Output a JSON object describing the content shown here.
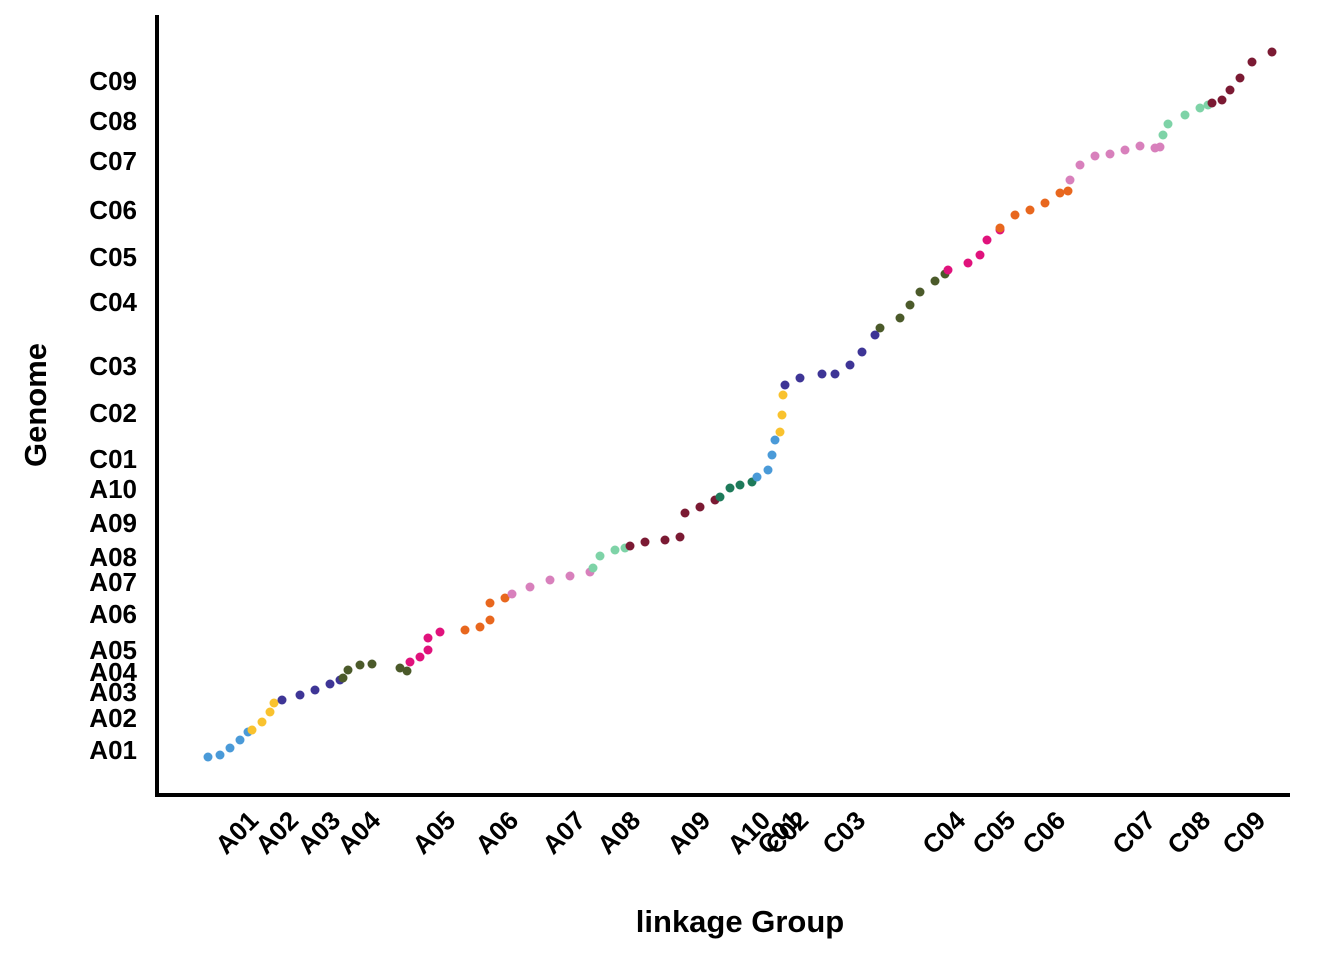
{
  "chart_data": {
    "type": "scatter",
    "x_label": "linkage Group",
    "y_label": "Genome",
    "xlim": [
      0,
      1133
    ],
    "ylim": [
      0,
      780
    ],
    "xticks": [
      {
        "value": 71,
        "label": "A01"
      },
      {
        "value": 111,
        "label": "A02"
      },
      {
        "value": 153,
        "label": "A03"
      },
      {
        "value": 193,
        "label": "A04"
      },
      {
        "value": 268,
        "label": "A05"
      },
      {
        "value": 331,
        "label": "A06"
      },
      {
        "value": 398,
        "label": "A07"
      },
      {
        "value": 453,
        "label": "A08"
      },
      {
        "value": 523,
        "label": "A09"
      },
      {
        "value": 583,
        "label": "A10"
      },
      {
        "value": 613,
        "label": "C01"
      },
      {
        "value": 621,
        "label": "C02"
      },
      {
        "value": 678,
        "label": "C03"
      },
      {
        "value": 778,
        "label": "C04"
      },
      {
        "value": 828,
        "label": "C05"
      },
      {
        "value": 878,
        "label": "C06"
      },
      {
        "value": 968,
        "label": "C07"
      },
      {
        "value": 1023,
        "label": "C08"
      },
      {
        "value": 1078,
        "label": "C09"
      }
    ],
    "yticks": [
      {
        "value": 45,
        "label": "A01"
      },
      {
        "value": 77,
        "label": "A02"
      },
      {
        "value": 103,
        "label": "A03"
      },
      {
        "value": 123,
        "label": "A04"
      },
      {
        "value": 145,
        "label": "A05"
      },
      {
        "value": 181,
        "label": "A06"
      },
      {
        "value": 213,
        "label": "A07"
      },
      {
        "value": 238,
        "label": "A08"
      },
      {
        "value": 272,
        "label": "A09"
      },
      {
        "value": 306,
        "label": "A10"
      },
      {
        "value": 336,
        "label": "C01"
      },
      {
        "value": 382,
        "label": "C02"
      },
      {
        "value": 429,
        "label": "C03"
      },
      {
        "value": 493,
        "label": "C04"
      },
      {
        "value": 538,
        "label": "C05"
      },
      {
        "value": 585,
        "label": "C06"
      },
      {
        "value": 634,
        "label": "C07"
      },
      {
        "value": 674,
        "label": "C08"
      },
      {
        "value": 714,
        "label": "C09"
      }
    ],
    "series": [
      {
        "name": "A01",
        "color": "#4a9ad8",
        "x": [
          51,
          63,
          73,
          83,
          91
        ],
        "values": [
          38,
          40,
          47,
          55,
          63
        ]
      },
      {
        "name": "A02",
        "color": "#f9c22e",
        "x": [
          95,
          105,
          113,
          117
        ],
        "values": [
          65,
          73,
          83,
          92
        ]
      },
      {
        "name": "A03",
        "color": "#3e3596",
        "x": [
          125,
          143,
          158,
          173,
          183
        ],
        "values": [
          95,
          100,
          105,
          111,
          115
        ]
      },
      {
        "name": "A04",
        "color": "#4b5a2a",
        "x": [
          186,
          191,
          203,
          215,
          243,
          250
        ],
        "values": [
          117,
          125,
          130,
          131,
          127,
          124
        ]
      },
      {
        "name": "A05",
        "color": "#e0127c",
        "x": [
          253,
          263,
          271,
          271,
          283
        ],
        "values": [
          133,
          138,
          145,
          157,
          163
        ]
      },
      {
        "name": "A06",
        "color": "#e8671e",
        "x": [
          308,
          323,
          333,
          333,
          348
        ],
        "values": [
          165,
          168,
          175,
          192,
          197
        ]
      },
      {
        "name": "A07",
        "color": "#d880bc",
        "x": [
          355,
          373,
          393,
          413,
          433
        ],
        "values": [
          201,
          208,
          215,
          219,
          223
        ]
      },
      {
        "name": "A08",
        "color": "#7ed3a7",
        "x": [
          436,
          443,
          458,
          468
        ],
        "values": [
          227,
          239,
          245,
          247
        ]
      },
      {
        "name": "A09",
        "color": "#7b1a33",
        "x": [
          473,
          488,
          508,
          523,
          528,
          543,
          558
        ],
        "values": [
          249,
          253,
          255,
          258,
          282,
          288,
          295
        ]
      },
      {
        "name": "A10",
        "color": "#1e7a5a",
        "x": [
          563,
          573,
          583,
          595
        ],
        "values": [
          298,
          307,
          310,
          313
        ]
      },
      {
        "name": "C01",
        "color": "#4a9ad8",
        "x": [
          600,
          611,
          615,
          618
        ],
        "values": [
          318,
          325,
          340,
          355
        ]
      },
      {
        "name": "C02",
        "color": "#f9c22e",
        "x": [
          623,
          625,
          626
        ],
        "values": [
          363,
          380,
          400
        ]
      },
      {
        "name": "C03",
        "color": "#3e3596",
        "x": [
          628,
          643,
          665,
          678,
          693,
          705,
          718
        ],
        "values": [
          410,
          417,
          421,
          421,
          430,
          443,
          460
        ]
      },
      {
        "name": "C04",
        "color": "#4b5a2a",
        "x": [
          723,
          743,
          753,
          763,
          778,
          788
        ],
        "values": [
          467,
          477,
          490,
          503,
          514,
          521
        ]
      },
      {
        "name": "C05",
        "color": "#e0127c",
        "x": [
          791,
          811,
          823,
          830,
          843
        ],
        "values": [
          525,
          532,
          540,
          555,
          565
        ]
      },
      {
        "name": "C06",
        "color": "#e8671e",
        "x": [
          843,
          858,
          873,
          888,
          903,
          911
        ],
        "values": [
          567,
          580,
          585,
          592,
          602,
          604
        ]
      },
      {
        "name": "C07",
        "color": "#d880bc",
        "x": [
          913,
          923,
          938,
          953,
          968,
          983,
          998,
          1003
        ],
        "values": [
          615,
          630,
          639,
          641,
          645,
          649,
          647,
          648
        ]
      },
      {
        "name": "C08",
        "color": "#7ed3a7",
        "x": [
          1006,
          1011,
          1028,
          1043,
          1051
        ],
        "values": [
          660,
          671,
          680,
          687,
          690
        ]
      },
      {
        "name": "C09",
        "color": "#7b1a33",
        "x": [
          1055,
          1065,
          1073,
          1083,
          1095,
          1115
        ],
        "values": [
          692,
          695,
          705,
          717,
          733,
          743
        ]
      }
    ]
  }
}
